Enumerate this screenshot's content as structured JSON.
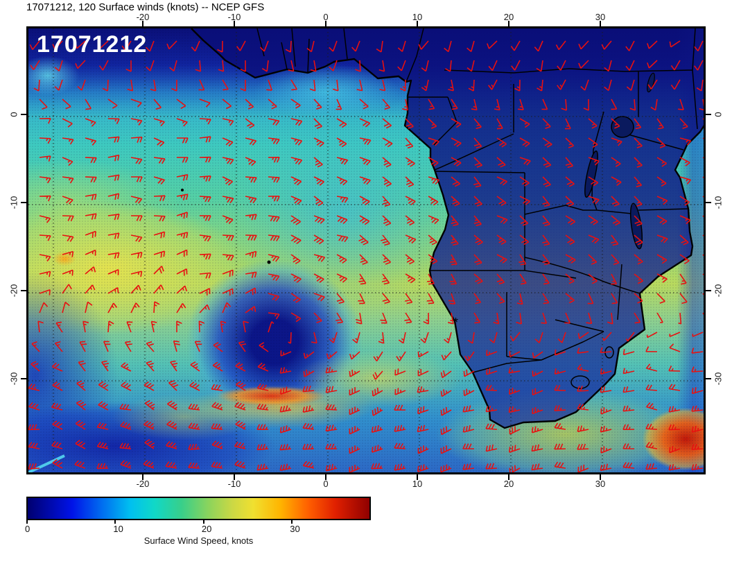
{
  "header": {
    "title": "17071212, 120 Surface winds (knots) -- NCEP GFS"
  },
  "map": {
    "overlay_label": "17071212",
    "barb_color": "#e81010",
    "x_axis": {
      "ticks": [
        {
          "lon": -20,
          "label": "-20"
        },
        {
          "lon": -10,
          "label": "-10"
        },
        {
          "lon": 0,
          "label": "0"
        },
        {
          "lon": 10,
          "label": "10"
        },
        {
          "lon": 20,
          "label": "20"
        },
        {
          "lon": 30,
          "label": "30"
        }
      ]
    },
    "y_axis": {
      "ticks": [
        {
          "lat": 0,
          "label": "0"
        },
        {
          "lat": -10,
          "label": "-10"
        },
        {
          "lat": -20,
          "label": "-20"
        },
        {
          "lat": -30,
          "label": "-30"
        }
      ]
    },
    "grid": {
      "lons": [
        -30,
        -20,
        -10,
        0,
        10,
        20,
        30
      ],
      "lats": [
        0,
        -10,
        -20,
        -30
      ]
    }
  },
  "colorbar": {
    "caption": "Surface Wind Speed, knots",
    "max": 39,
    "ticks": [
      {
        "value": 0,
        "label": "0"
      },
      {
        "value": 10,
        "label": "10"
      },
      {
        "value": 20,
        "label": "20"
      },
      {
        "value": 30,
        "label": "30"
      }
    ],
    "stops": [
      {
        "p": 0.0,
        "c": "#000070"
      },
      {
        "p": 0.13,
        "c": "#0013e8"
      },
      {
        "p": 0.22,
        "c": "#0070f0"
      },
      {
        "p": 0.3,
        "c": "#00c0f0"
      },
      {
        "p": 0.37,
        "c": "#10d8c8"
      },
      {
        "p": 0.45,
        "c": "#38cf8a"
      },
      {
        "p": 0.53,
        "c": "#8cd45c"
      },
      {
        "p": 0.6,
        "c": "#ccd844"
      },
      {
        "p": 0.66,
        "c": "#f0e030"
      },
      {
        "p": 0.74,
        "c": "#ffb400"
      },
      {
        "p": 0.82,
        "c": "#ff6000"
      },
      {
        "p": 0.9,
        "c": "#e02000"
      },
      {
        "p": 1.0,
        "c": "#8f0000"
      }
    ]
  },
  "chart_data": {
    "type": "heatmap",
    "title": "17071212, 120 Surface winds (knots) -- NCEP GFS",
    "model": "NCEP GFS",
    "init_time": "17071212",
    "forecast_hour": 120,
    "variable": "Surface winds",
    "units": "knots",
    "lon_range": [
      -32,
      42.5
    ],
    "lat_range": [
      -41,
      10
    ],
    "colorbar": {
      "label": "Surface Wind Speed, knots",
      "range": [
        0,
        39
      ],
      "ticks": [
        0,
        10,
        20,
        30
      ]
    },
    "overlay": "red wind barbs on a regular grid over the whole domain; Africa coastline, country borders and lakes drawn in black",
    "features": [
      {
        "name": "calm-center-south-atlantic-high",
        "lon": -6,
        "lat": -25,
        "approx_speed_kt": 5
      },
      {
        "name": "strong-westerlies-band-south",
        "lat": -35,
        "approx_speed_kt": 30
      },
      {
        "name": "orange-wind-max-streak",
        "lon": -6,
        "lat": -31,
        "approx_speed_kt": 33
      },
      {
        "name": "agulhas-wind-max-southeast-corner",
        "lon": 38,
        "lat": -35,
        "approx_speed_kt": 37
      },
      {
        "name": "southeast-trade-wind-band",
        "lon": -22,
        "lat": -15,
        "approx_speed_kt": 22
      },
      {
        "name": "light-winds-over-continent-interior",
        "lon": 25,
        "lat": -8,
        "approx_speed_kt": 5
      },
      {
        "name": "dark-calm-band-north-of-equator",
        "lat": 7,
        "approx_speed_kt": 6
      }
    ]
  }
}
